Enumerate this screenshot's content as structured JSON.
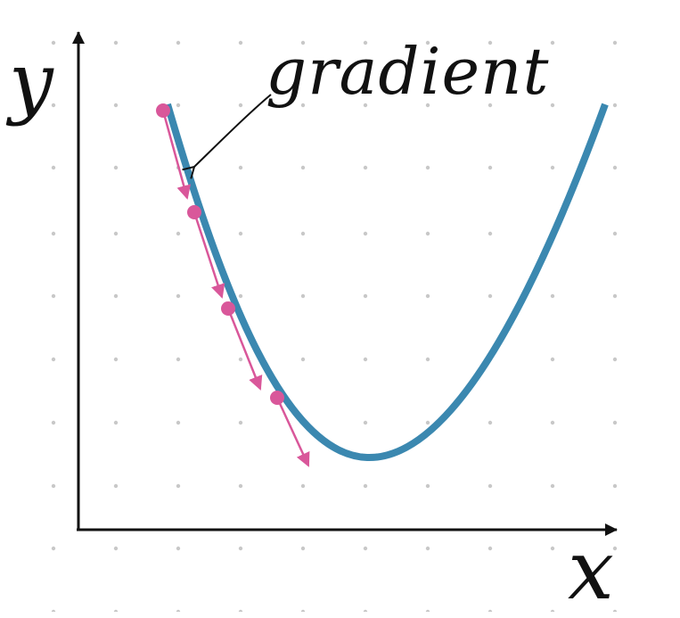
{
  "labels": {
    "y_axis": "y",
    "x_axis": "x",
    "annotation": "gradient"
  },
  "colors": {
    "curve": "#3b88b0",
    "gradient_steps": "#d9579a",
    "axis": "#111111",
    "grid_dots": "#c8c8c8",
    "background": "#ffffff"
  },
  "steps": {
    "count": 4
  }
}
